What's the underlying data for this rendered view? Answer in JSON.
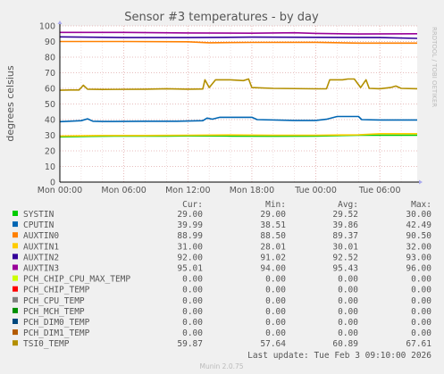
{
  "chart_data": {
    "type": "line",
    "title": "Sensor #3 temperatures - by day",
    "ylabel": "degrees celsius",
    "watermark": "RRDTOOL / TOBI OETIKER",
    "ylim": [
      0,
      100
    ],
    "yticks": [
      0,
      10,
      20,
      30,
      40,
      50,
      60,
      70,
      80,
      90,
      100
    ],
    "xlim": [
      0,
      33.5
    ],
    "x_unit": "hours since Mon 00:00",
    "xticks": [
      {
        "label": "Mon 00:00",
        "h": 0
      },
      {
        "label": "Mon 06:00",
        "h": 6
      },
      {
        "label": "Mon 12:00",
        "h": 12
      },
      {
        "label": "Mon 18:00",
        "h": 18
      },
      {
        "label": "Tue 00:00",
        "h": 24
      },
      {
        "label": "Tue 06:00",
        "h": 30
      }
    ],
    "grid": true,
    "legend_header": {
      "cur": "Cur:",
      "min": "Min:",
      "avg": "Avg:",
      "max": "Max:"
    },
    "series": [
      {
        "name": "SYSTIN",
        "color": "#00cc00",
        "cur": "29.00",
        "min": "29.00",
        "avg": "29.52",
        "max": "30.00",
        "points": [
          [
            0,
            29
          ],
          [
            3,
            29.3
          ],
          [
            6,
            29.5
          ],
          [
            10,
            29.5
          ],
          [
            12,
            29.6
          ],
          [
            16,
            29.5
          ],
          [
            20,
            29.4
          ],
          [
            24,
            29.5
          ],
          [
            28,
            30
          ],
          [
            33.5,
            30
          ]
        ]
      },
      {
        "name": "CPUTIN",
        "color": "#0066b3",
        "cur": "39.99",
        "min": "38.51",
        "avg": "39.86",
        "max": "42.49",
        "points": [
          [
            0,
            38.7
          ],
          [
            2,
            39.3
          ],
          [
            2.6,
            40.5
          ],
          [
            3.1,
            39
          ],
          [
            4,
            38.8
          ],
          [
            8,
            39
          ],
          [
            11,
            39
          ],
          [
            13.4,
            39.3
          ],
          [
            13.8,
            41
          ],
          [
            14.3,
            40.3
          ],
          [
            15,
            41.5
          ],
          [
            18,
            41.5
          ],
          [
            18.5,
            40
          ],
          [
            22,
            39.5
          ],
          [
            24,
            39.5
          ],
          [
            25,
            40.2
          ],
          [
            26,
            42
          ],
          [
            28,
            42
          ],
          [
            28.3,
            40
          ],
          [
            30,
            39.8
          ],
          [
            33.5,
            39.8
          ]
        ]
      },
      {
        "name": "AUXTIN0",
        "color": "#ff8000",
        "cur": "88.99",
        "min": "88.50",
        "avg": "89.37",
        "max": "90.50",
        "points": [
          [
            0,
            90
          ],
          [
            6,
            90
          ],
          [
            12,
            89.8
          ],
          [
            14,
            89.2
          ],
          [
            18,
            89.4
          ],
          [
            24,
            89.5
          ],
          [
            28,
            89
          ],
          [
            33.5,
            89
          ]
        ]
      },
      {
        "name": "AUXTIN1",
        "color": "#ffcc00",
        "cur": "31.00",
        "min": "28.01",
        "avg": "30.01",
        "max": "32.00",
        "points": [
          [
            0,
            29.5
          ],
          [
            4,
            29.8
          ],
          [
            8,
            29.8
          ],
          [
            12,
            30
          ],
          [
            16,
            30.2
          ],
          [
            20,
            30
          ],
          [
            24,
            30
          ],
          [
            28,
            30.3
          ],
          [
            30,
            31
          ],
          [
            33.5,
            31
          ]
        ]
      },
      {
        "name": "AUXTIN2",
        "color": "#330099",
        "cur": "92.00",
        "min": "91.02",
        "avg": "92.52",
        "max": "93.00",
        "points": [
          [
            0,
            93
          ],
          [
            6,
            92.5
          ],
          [
            12,
            92.5
          ],
          [
            18,
            92.8
          ],
          [
            24,
            92.7
          ],
          [
            30,
            92.5
          ],
          [
            33.5,
            92
          ]
        ]
      },
      {
        "name": "AUXTIN3",
        "color": "#990099",
        "cur": "95.01",
        "min": "94.00",
        "avg": "95.43",
        "max": "96.00",
        "points": [
          [
            0,
            95.8
          ],
          [
            6,
            95.8
          ],
          [
            12,
            95.5
          ],
          [
            18,
            95.3
          ],
          [
            22,
            95.6
          ],
          [
            24,
            95.2
          ],
          [
            28,
            94.8
          ],
          [
            33.5,
            95
          ]
        ]
      },
      {
        "name": "PCH_CHIP_CPU_MAX_TEMP",
        "color": "#ccff00",
        "cur": "0.00",
        "min": "0.00",
        "avg": "0.00",
        "max": "0.00",
        "points": []
      },
      {
        "name": "PCH_CHIP_TEMP",
        "color": "#ff0000",
        "cur": "0.00",
        "min": "0.00",
        "avg": "0.00",
        "max": "0.00",
        "points": []
      },
      {
        "name": "PCH_CPU_TEMP",
        "color": "#808080",
        "cur": "0.00",
        "min": "0.00",
        "avg": "0.00",
        "max": "0.00",
        "points": []
      },
      {
        "name": "PCH_MCH_TEMP",
        "color": "#008f00",
        "cur": "0.00",
        "min": "0.00",
        "avg": "0.00",
        "max": "0.00",
        "points": []
      },
      {
        "name": "PCH_DIM0_TEMP",
        "color": "#00487d",
        "cur": "0.00",
        "min": "0.00",
        "avg": "0.00",
        "max": "0.00",
        "points": []
      },
      {
        "name": "PCH_DIM1_TEMP",
        "color": "#b35a00",
        "cur": "0.00",
        "min": "0.00",
        "avg": "0.00",
        "max": "0.00",
        "points": []
      },
      {
        "name": "TSI0_TEMP",
        "color": "#b38f00",
        "cur": "59.87",
        "min": "57.64",
        "avg": "60.89",
        "max": "67.61",
        "points": [
          [
            0,
            58.8
          ],
          [
            1,
            59
          ],
          [
            1.8,
            59
          ],
          [
            2.2,
            62
          ],
          [
            2.6,
            59.5
          ],
          [
            4,
            59.3
          ],
          [
            8,
            59.5
          ],
          [
            10,
            59.8
          ],
          [
            12,
            59.5
          ],
          [
            13.4,
            59.6
          ],
          [
            13.6,
            65.5
          ],
          [
            14,
            60.5
          ],
          [
            14.6,
            65.5
          ],
          [
            16,
            65.5
          ],
          [
            17.2,
            65
          ],
          [
            17.7,
            66
          ],
          [
            18,
            60.5
          ],
          [
            20,
            60
          ],
          [
            24,
            59.7
          ],
          [
            25,
            59.8
          ],
          [
            25.3,
            65.5
          ],
          [
            26.5,
            65.5
          ],
          [
            27,
            66
          ],
          [
            27.6,
            66
          ],
          [
            28.2,
            60.5
          ],
          [
            28.7,
            65.5
          ],
          [
            29,
            60
          ],
          [
            30,
            59.8
          ],
          [
            31,
            60.5
          ],
          [
            31.5,
            61.5
          ],
          [
            32,
            60
          ],
          [
            33.5,
            59.8
          ]
        ]
      }
    ]
  },
  "footer": {
    "last_update": "Last update: Tue Feb  3 09:10:00 2026",
    "version": "Munin 2.0.75"
  }
}
